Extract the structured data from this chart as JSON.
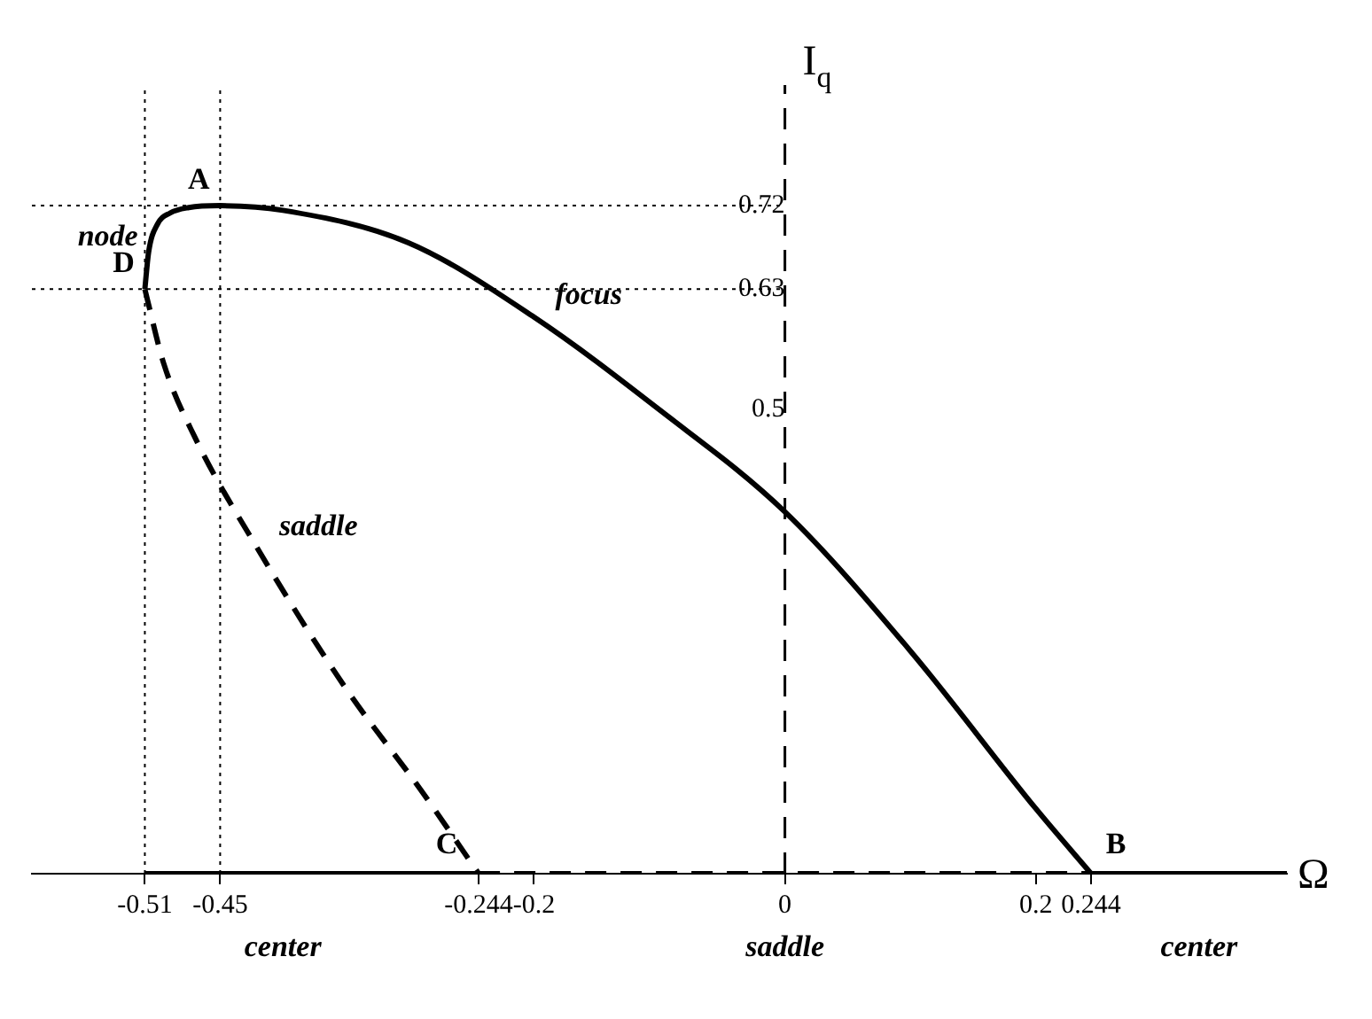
{
  "chart_data": {
    "type": "line",
    "xlabel": "Ω",
    "ylabel": "I$_{q}$",
    "xlim": [
      -0.6,
      0.4
    ],
    "ylim": [
      0,
      0.85
    ],
    "xticks": [
      -0.51,
      -0.45,
      -0.244,
      -0.2,
      0,
      0.2,
      0.244
    ],
    "yticks": [
      0.5,
      0.63,
      0.72
    ],
    "series": [
      {
        "color": "#000000",
        "line_style": "solid",
        "x": [
          -0.51,
          -0.507,
          -0.5,
          -0.49,
          -0.475,
          -0.45,
          -0.4,
          -0.3,
          -0.2,
          -0.1,
          0,
          0.1,
          0.2,
          0.244
        ],
        "values": [
          0.63,
          0.67,
          0.7,
          0.712,
          0.718,
          0.72,
          0.715,
          0.68,
          0.6,
          0.5,
          0.39,
          0.24,
          0.07,
          0
        ]
      },
      {
        "color": "#000000",
        "line_style": "dashed",
        "x": [
          -0.51,
          -0.495,
          -0.47,
          -0.42,
          -0.35,
          -0.29,
          -0.244
        ],
        "values": [
          0.63,
          0.55,
          0.47,
          0.35,
          0.2,
          0.09,
          0
        ]
      },
      {
        "color": "#000000",
        "line_style": "solid",
        "x": [
          -0.51,
          -0.244
        ],
        "values": [
          0,
          0
        ]
      },
      {
        "color": "#000000",
        "line_style": "dashed",
        "x": [
          -0.244,
          0.244
        ],
        "values": [
          0,
          0
        ]
      },
      {
        "color": "#000000",
        "line_style": "solid",
        "x": [
          0.244,
          0.4
        ],
        "values": [
          0,
          0
        ]
      }
    ],
    "ref_lines": [
      {
        "axis": "x",
        "value": 0,
        "line_style": "dashed",
        "color": "#000000"
      },
      {
        "axis": "y",
        "value": 0.72,
        "line_style": "dotted",
        "color": "#000000"
      },
      {
        "axis": "y",
        "value": 0.63,
        "line_style": "dotted",
        "color": "#000000"
      },
      {
        "axis": "x",
        "value": -0.45,
        "line_style": "dotted",
        "color": "#000000"
      },
      {
        "axis": "x",
        "value": -0.51,
        "line_style": "dotted",
        "color": "#000000"
      }
    ],
    "annotations": [
      {
        "text": "A",
        "x": -0.45,
        "y": 0.72
      },
      {
        "text": "D",
        "x": -0.51,
        "y": 0.63
      },
      {
        "text": "C",
        "x": -0.244,
        "y": 0
      },
      {
        "text": "B",
        "x": 0.244,
        "y": 0
      },
      {
        "text": "node",
        "x": -0.507,
        "y": 0.67
      },
      {
        "text": "focus",
        "x": -0.2,
        "y": 0.6
      },
      {
        "text": "saddle",
        "x": -0.42,
        "y": 0.35
      },
      {
        "text": "center",
        "x": -0.4,
        "y": 0
      },
      {
        "text": "saddle",
        "x": 0,
        "y": 0
      },
      {
        "text": "center",
        "x": 0.33,
        "y": 0
      }
    ],
    "legend": false,
    "grid": false
  }
}
